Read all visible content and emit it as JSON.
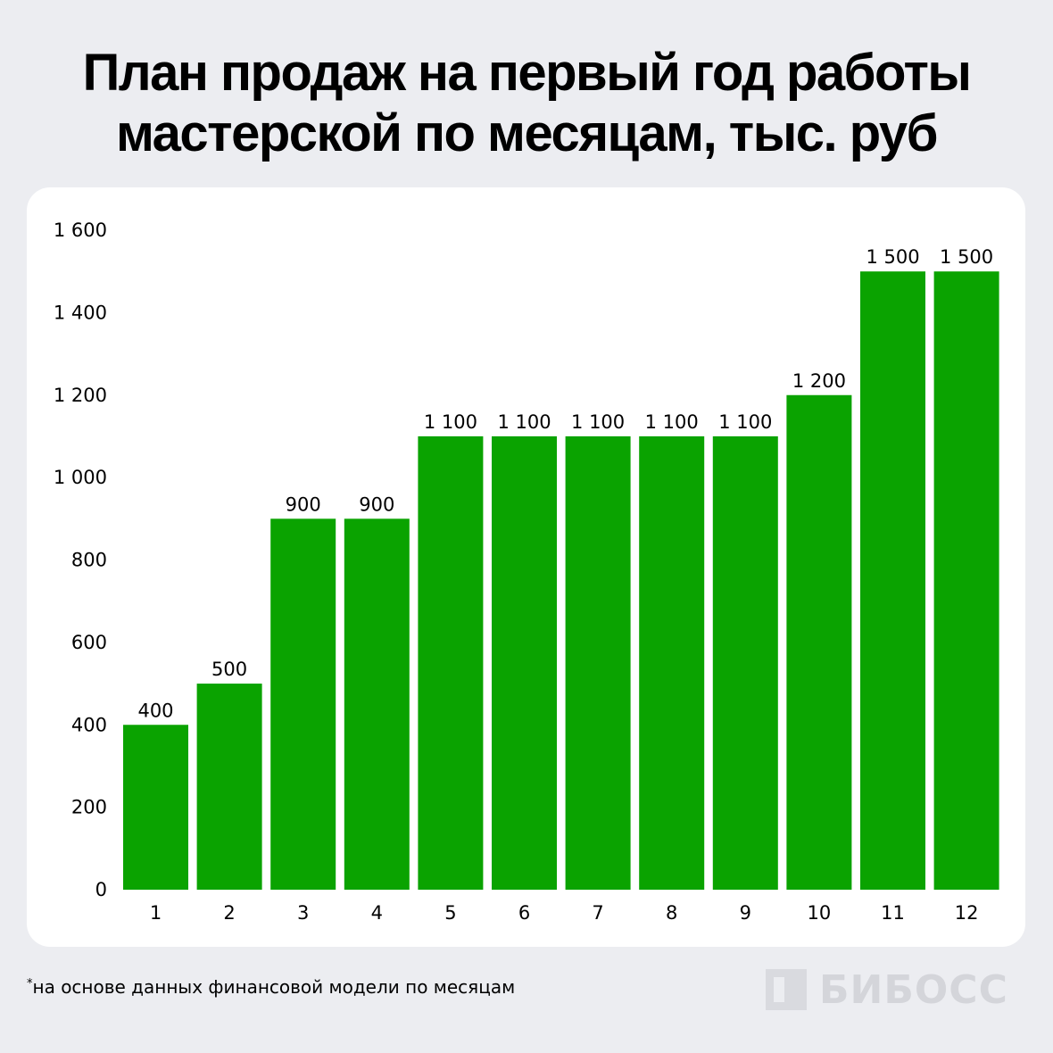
{
  "header": {
    "title_line1": "План продаж на первый год работы",
    "title_line2": "мастерской по месяцам, тыс. руб"
  },
  "chart_data": {
    "type": "bar",
    "title": "План продаж на первый год работы мастерской по месяцам, тыс. руб",
    "categories": [
      "1",
      "2",
      "3",
      "4",
      "5",
      "6",
      "7",
      "8",
      "9",
      "10",
      "11",
      "12"
    ],
    "values": [
      400,
      500,
      900,
      900,
      1100,
      1100,
      1100,
      1100,
      1100,
      1200,
      1500,
      1500
    ],
    "value_labels": [
      "400",
      "500",
      "900",
      "900",
      "1 100",
      "1 100",
      "1 100",
      "1 100",
      "1 100",
      "1 200",
      "1 500",
      "1 500"
    ],
    "ylim": [
      0,
      1600
    ],
    "yticks": [
      0,
      200,
      400,
      600,
      800,
      1000,
      1200,
      1400,
      1600
    ],
    "ytick_labels": [
      "0",
      "200",
      "400",
      "600",
      "800",
      "1 000",
      "1 200",
      "1 400",
      "1 600"
    ],
    "bar_color": "#0aa300",
    "grid": false,
    "legend": "none"
  },
  "footnote": {
    "mark": "*",
    "text": "на основе данных финансовой модели по месяцам"
  },
  "brand": {
    "name": "БИБОСС"
  },
  "colors": {
    "background": "#ecedf1",
    "card": "#ffffff",
    "bar": "#0aa300",
    "brand": "#d4d5da"
  }
}
